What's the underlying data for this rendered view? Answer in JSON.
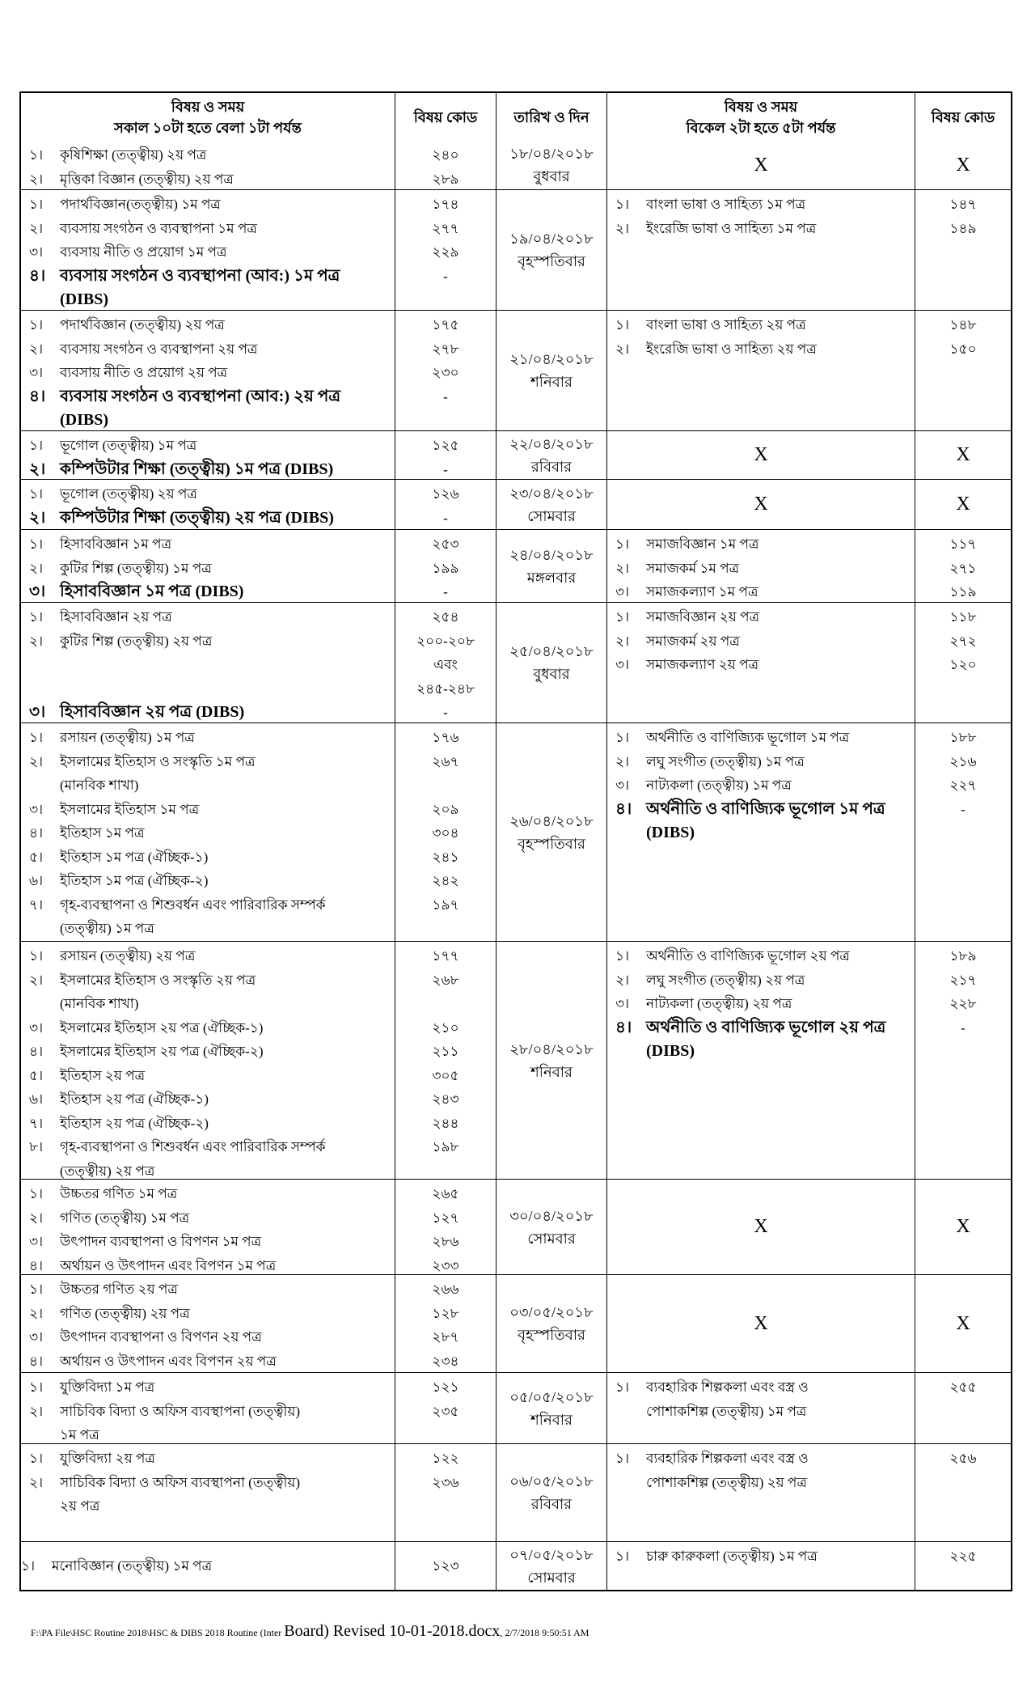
{
  "header": {
    "morning_title": "বিষয় ও সময়",
    "morning_time": "সকাল ১০টা হতে বেলা ১টা পর্যন্ত",
    "code": "বিষয় কোড",
    "date": "তারিখ ও দিন",
    "afternoon_title": "বিষয় ও সময়",
    "afternoon_time": "বিকেল ২টা হতে ৫টা পর্যন্ত",
    "code2": "বিষয় কোড"
  },
  "rows": [
    {
      "date": "১৮/০৪/২০১৮",
      "day": "বুধবার",
      "morning": [
        {
          "n": "১।",
          "t": "কৃষিশিক্ষা (তত্ত্বীয়) ২য় পত্র",
          "c": "২৪০"
        },
        {
          "n": "২।",
          "t": "মৃত্তিকা বিজ্ঞান (তত্ত্বীয়) ২য় পত্র",
          "c": "২৮৯"
        }
      ],
      "afternoon": "X",
      "afternoon_code": "X"
    },
    {
      "date": "১৯/০৪/২০১৮",
      "day": "বৃহস্পতিবার",
      "morning": [
        {
          "n": "১।",
          "t": "পদার্থবিজ্ঞান(তত্ত্বীয়) ১ম পত্র",
          "c": "১৭৪"
        },
        {
          "n": "২।",
          "t": "ব্যবসায় সংগঠন ও ব্যবস্থাপনা ১ম পত্র",
          "c": "২৭৭"
        },
        {
          "n": "৩।",
          "t": "ব্যবসায় নীতি ও প্রয়োগ ১ম পত্র",
          "c": "২২৯"
        },
        {
          "n": "৪।",
          "t": "ব্যবসায় সংগঠন ও ব্যবস্থাপনা (আব:) ১ম পত্র",
          "c": "-",
          "b": true
        },
        {
          "n": "",
          "t": "(DIBS)",
          "c": "",
          "b": true
        }
      ],
      "afternoon": [
        {
          "n": "১।",
          "t": "বাংলা ভাষা ও সাহিত্য ১ম পত্র",
          "c": "১৪৭"
        },
        {
          "n": "২।",
          "t": "ইংরেজি ভাষা ও সাহিত্য ১ম পত্র",
          "c": "১৪৯"
        }
      ]
    },
    {
      "date": "২১/০৪/২০১৮",
      "day": "শনিবার",
      "morning": [
        {
          "n": "১।",
          "t": "পদার্থবিজ্ঞান (তত্ত্বীয়) ২য় পত্র",
          "c": "১৭৫"
        },
        {
          "n": "২।",
          "t": "ব্যবসায় সংগঠন ও ব্যবস্থাপনা ২য় পত্র",
          "c": "২৭৮"
        },
        {
          "n": "৩।",
          "t": "ব্যবসায় নীতি ও প্রয়োগ ২য় পত্র",
          "c": "২৩০"
        },
        {
          "n": "৪।",
          "t": "ব্যবসায় সংগঠন ও ব্যবস্থাপনা (আব:) ২য় পত্র",
          "c": "-",
          "b": true
        },
        {
          "n": "",
          "t": "(DIBS)",
          "c": "",
          "b": true
        }
      ],
      "afternoon": [
        {
          "n": "১।",
          "t": "বাংলা ভাষা ও সাহিত্য ২য় পত্র",
          "c": "১৪৮"
        },
        {
          "n": "২।",
          "t": "ইংরেজি ভাষা ও সাহিত্য ২য় পত্র",
          "c": "১৫০"
        }
      ]
    },
    {
      "date": "২২/০৪/২০১৮",
      "day": "রবিবার",
      "morning": [
        {
          "n": "১।",
          "t": "ভূগোল (তত্ত্বীয়) ১ম পত্র",
          "c": "১২৫"
        },
        {
          "n": "২।",
          "t": "কম্পিউটার শিক্ষা (তত্ত্বীয়) ১ম পত্র (DIBS)",
          "c": "-",
          "b": true
        }
      ],
      "afternoon": "X",
      "afternoon_code": "X"
    },
    {
      "date": "২৩/০৪/২০১৮",
      "day": "সোমবার",
      "morning": [
        {
          "n": "১।",
          "t": "ভূগোল (তত্ত্বীয়) ২য় পত্র",
          "c": "১২৬"
        },
        {
          "n": "২।",
          "t": "কম্পিউটার শিক্ষা (তত্ত্বীয়) ২য় পত্র (DIBS)",
          "c": "-",
          "b": true
        }
      ],
      "afternoon": "X",
      "afternoon_code": "X"
    },
    {
      "date": "২৪/০৪/২০১৮",
      "day": "মঙ্গলবার",
      "morning": [
        {
          "n": "১।",
          "t": "হিসাববিজ্ঞান  ১ম পত্র",
          "c": "২৫৩"
        },
        {
          "n": "২।",
          "t": "কুটির শিল্প  (তত্ত্বীয়) ১ম পত্র",
          "c": "১৯৯"
        },
        {
          "n": "৩।",
          "t": "হিসাববিজ্ঞান ১ম পত্র (DIBS)",
          "c": "-",
          "b": true
        }
      ],
      "afternoon": [
        {
          "n": "১।",
          "t": "সমাজবিজ্ঞান ১ম পত্র",
          "c": "১১৭"
        },
        {
          "n": "২।",
          "t": "সমাজকর্ম ১ম পত্র",
          "c": "২৭১"
        },
        {
          "n": "৩।",
          "t": "সমাজকল্যাণ ১ম পত্র",
          "c": "১১৯"
        }
      ]
    },
    {
      "date": "২৫/০৪/২০১৮",
      "day": "বুধবার",
      "morning": [
        {
          "n": "১।",
          "t": "হিসাববিজ্ঞান  ২য় পত্র",
          "c": "২৫৪"
        },
        {
          "n": "২।",
          "t": "কুটির শিল্প  (তত্ত্বীয়) ২য় পত্র",
          "c": "২০০-২০৮"
        },
        {
          "n": "",
          "t": "",
          "c": "এবং"
        },
        {
          "n": "",
          "t": "",
          "c": "২৪৫-২৪৮"
        },
        {
          "n": "৩।",
          "t": "হিসাববিজ্ঞান ২য় পত্র (DIBS)",
          "c": "-",
          "b": true
        }
      ],
      "afternoon": [
        {
          "n": "১।",
          "t": "সমাজবিজ্ঞান ২য় পত্র",
          "c": "১১৮"
        },
        {
          "n": "২।",
          "t": "সমাজকর্ম ২য় পত্র",
          "c": "২৭২"
        },
        {
          "n": "৩।",
          "t": "সমাজকল্যাণ ২য় পত্র",
          "c": "১২০"
        }
      ]
    },
    {
      "date": "২৬/০৪/২০১৮",
      "day": "বৃহস্পতিবার",
      "morning": [
        {
          "n": "১।",
          "t": "রসায়ন (তত্ত্বীয়) ১ম পত্র",
          "c": "১৭৬"
        },
        {
          "n": "২।",
          "t": "ইসলামের ইতিহাস ও সংস্কৃতি ১ম পত্র",
          "c": "২৬৭"
        },
        {
          "n": "",
          "t": "(মানবিক শাখা)",
          "c": ""
        },
        {
          "n": "৩।",
          "t": "ইসলামের ইতিহাস ১ম পত্র",
          "c": "২০৯"
        },
        {
          "n": "৪।",
          "t": "ইতিহাস  ১ম পত্র",
          "c": "৩০৪"
        },
        {
          "n": "৫।",
          "t": "ইতিহাস  ১ম পত্র (ঐচ্ছিক-১)",
          "c": "২৪১"
        },
        {
          "n": "৬।",
          "t": "ইতিহাস  ১ম পত্র (ঐচ্ছিক-২)",
          "c": "২৪২"
        },
        {
          "n": "৭।",
          "t": "গৃহ-ব্যবস্থাপনা ও শিশুবর্ধন এবং পারিবারিক সম্পর্ক",
          "c": "১৯৭"
        },
        {
          "n": "",
          "t": "(তত্ত্বীয়) ১ম পত্র",
          "c": ""
        }
      ],
      "afternoon": [
        {
          "n": "১।",
          "t": "অর্থনীতি ও বাণিজ্যিক ভূগোল ১ম পত্র",
          "c": "১৮৮"
        },
        {
          "n": "২।",
          "t": "লঘু  সংগীত (তত্ত্বীয়) ১ম পত্র",
          "c": "২১৬"
        },
        {
          "n": "৩।",
          "t": "নাট্যকলা (তত্ত্বীয়) ১ম পত্র",
          "c": "২২৭"
        },
        {
          "n": "৪।",
          "t": "অর্থনীতি ও বাণিজ্যিক ভূগোল ১ম পত্র",
          "c": "-",
          "b": true
        },
        {
          "n": "",
          "t": "(DIBS)",
          "c": "",
          "b": true
        }
      ]
    },
    {
      "date": "২৮/০৪/২০১৮",
      "day": "শনিবার",
      "morning": [
        {
          "n": "১।",
          "t": "রসায়ন (তত্ত্বীয়) ২য় পত্র",
          "c": "১৭৭"
        },
        {
          "n": "২।",
          "t": "ইসলামের ইতিহাস ও সংস্কৃতি ২য় পত্র",
          "c": "২৬৮"
        },
        {
          "n": "",
          "t": "(মানবিক শাখা)",
          "c": ""
        },
        {
          "n": "৩।",
          "t": "ইসলামের ইতিহাস ২য় পত্র (ঐচ্ছিক-১)",
          "c": "২১০"
        },
        {
          "n": "৪।",
          "t": "ইসলামের ইতিহাস ২য় পত্র (ঐচ্ছিক-২)",
          "c": "২১১"
        },
        {
          "n": "৫।",
          "t": "ইতিহাস  ২য় পত্র",
          "c": "৩০৫"
        },
        {
          "n": "৬।",
          "t": "ইতিহাস  ২য় পত্র (ঐচ্ছিক-১)",
          "c": "২৪৩"
        },
        {
          "n": "৭।",
          "t": "ইতিহাস  ২য় পত্র (ঐচ্ছিক-২)",
          "c": "২৪৪"
        },
        {
          "n": "৮।",
          "t": "গৃহ-ব্যবস্থাপনা ও শিশুবর্ধন এবং পারিবারিক সম্পর্ক",
          "c": "১৯৮"
        },
        {
          "n": "",
          "t": "(তত্ত্বীয়) ২য় পত্র",
          "c": ""
        }
      ],
      "afternoon": [
        {
          "n": "১।",
          "t": "অর্থনীতি ও বাণিজ্যিক ভূগোল ২য় পত্র",
          "c": "১৮৯"
        },
        {
          "n": "২।",
          "t": "লঘু  সংগীত (তত্ত্বীয়) ২য় পত্র",
          "c": "২১৭"
        },
        {
          "n": "৩।",
          "t": "নাট্যকলা (তত্ত্বীয়) ২য় পত্র",
          "c": "২২৮"
        },
        {
          "n": "৪।",
          "t": "অর্থনীতি ও বাণিজ্যিক ভূগোল ২য় পত্র",
          "c": "-",
          "b": true
        },
        {
          "n": "",
          "t": "(DIBS)",
          "c": "",
          "b": true
        }
      ]
    },
    {
      "date": "৩০/০৪/২০১৮",
      "day": "সোমবার",
      "morning": [
        {
          "n": "১।",
          "t": "উচ্চতর গণিত ১ম পত্র",
          "c": "২৬৫"
        },
        {
          "n": "২।",
          "t": "গণিত (তত্ত্বীয়) ১ম পত্র",
          "c": "১২৭"
        },
        {
          "n": "৩।",
          "t": "উৎপাদন ব্যবস্থাপনা ও বিপণন ১ম পত্র",
          "c": "২৮৬"
        },
        {
          "n": "৪।",
          "t": "অর্থায়ন ও উৎপাদন এবং বিপণন ১ম পত্র",
          "c": "২৩৩"
        }
      ],
      "afternoon": "X",
      "afternoon_code": "X"
    },
    {
      "date": "০৩/০৫/২০১৮",
      "day": "বৃহস্পতিবার",
      "morning": [
        {
          "n": "১।",
          "t": "উচ্চতর গণিত ২য় পত্র",
          "c": "২৬৬"
        },
        {
          "n": "২।",
          "t": "গণিত  (তত্ত্বীয়) ২য় পত্র",
          "c": "১২৮"
        },
        {
          "n": "৩।",
          "t": "উৎপাদন ব্যবস্থাপনা ও বিপণন ২য় পত্র",
          "c": "২৮৭"
        },
        {
          "n": "৪।",
          "t": "অর্থায়ন ও উৎপাদন এবং বিপণন ২য় পত্র",
          "c": "২৩৪"
        }
      ],
      "afternoon": "X",
      "afternoon_code": "X"
    },
    {
      "date": "০৫/০৫/২০১৮",
      "day": "শনিবার",
      "morning": [
        {
          "n": "১।",
          "t": "যুক্তিবিদ্যা ১ম পত্র",
          "c": "১২১"
        },
        {
          "n": "২।",
          "t": "সাচিবিক বিদ্যা ও অফিস ব্যবস্থাপনা (তত্ত্বীয়)",
          "c": "২৩৫"
        },
        {
          "n": "",
          "t": "১ম পত্র",
          "c": ""
        }
      ],
      "afternoon": [
        {
          "n": "১।",
          "t": "ব্যবহারিক শিল্পকলা এবং বস্ত্র ও",
          "c": "২৫৫"
        },
        {
          "n": "",
          "t": "পোশাকশিল্প (তত্ত্বীয়) ১ম পত্র",
          "c": ""
        }
      ]
    },
    {
      "date": "০৬/০৫/২০১৮",
      "day": "রবিবার",
      "morning": [
        {
          "n": "১।",
          "t": "যুক্তিবিদ্যা ২য় পত্র",
          "c": "১২২"
        },
        {
          "n": "২।",
          "t": "সাচিবিক বিদ্যা ও অফিস ব্যবস্থাপনা (তত্ত্বীয়)",
          "c": "২৩৬"
        },
        {
          "n": "",
          "t": "২য় পত্র",
          "c": ""
        }
      ],
      "afternoon": [
        {
          "n": "১।",
          "t": "ব্যবহারিক শিল্পকলা এবং বস্ত্র ও",
          "c": "২৫৬"
        },
        {
          "n": "",
          "t": "পোশাকশিল্প (তত্ত্বীয়) ২য় পত্র",
          "c": ""
        }
      ]
    },
    {
      "date": "০৭/০৫/২০১৮",
      "day": "সোমবার",
      "morning": [
        {
          "n": "১।",
          "t": "মনোবিজ্ঞান (তত্ত্বীয়) ১ম পত্র",
          "c": "১২৩"
        }
      ],
      "afternoon": [
        {
          "n": "১।",
          "t": "চারু কারুকলা  (তত্ত্বীয়) ১ম পত্র",
          "c": "২২৫"
        }
      ]
    }
  ],
  "footer": {
    "path_start": "F:\\PA File\\HSC Routine 2018\\HSC & DIBS 2018 Routine (Inter ",
    "path_big": "Board) Revised 10-01-2018.docx",
    "timestamp": ", 2/7/2018 9:50:51 AM"
  }
}
